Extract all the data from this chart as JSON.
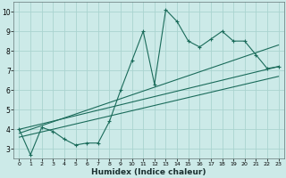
{
  "xlabel": "Humidex (Indice chaleur)",
  "bg_color": "#cceae8",
  "line_color": "#1a6b5a",
  "grid_color": "#aad4d0",
  "xlim": [
    -0.5,
    23.5
  ],
  "ylim": [
    2.5,
    10.5
  ],
  "xticks": [
    0,
    1,
    2,
    3,
    4,
    5,
    6,
    7,
    8,
    9,
    10,
    11,
    12,
    13,
    14,
    15,
    16,
    17,
    18,
    19,
    20,
    21,
    22,
    23
  ],
  "yticks": [
    3,
    4,
    5,
    6,
    7,
    8,
    9,
    10
  ],
  "main_x": [
    0,
    1,
    2,
    3,
    4,
    5,
    6,
    7,
    8,
    9,
    10,
    11,
    12,
    13,
    14,
    15,
    16,
    17,
    18,
    19,
    20,
    21,
    22,
    23
  ],
  "main_y": [
    4.0,
    2.7,
    4.1,
    3.9,
    3.5,
    3.2,
    3.3,
    3.3,
    4.4,
    6.0,
    7.5,
    9.0,
    6.3,
    10.1,
    9.5,
    8.5,
    8.2,
    8.6,
    9.0,
    8.5,
    8.5,
    7.8,
    7.1,
    7.2
  ],
  "trend1_x": [
    0,
    23
  ],
  "trend1_y": [
    4.0,
    7.2
  ],
  "trend2_x": [
    0,
    23
  ],
  "trend2_y": [
    3.8,
    8.3
  ],
  "trend3_x": [
    0,
    23
  ],
  "trend3_y": [
    3.6,
    6.7
  ]
}
